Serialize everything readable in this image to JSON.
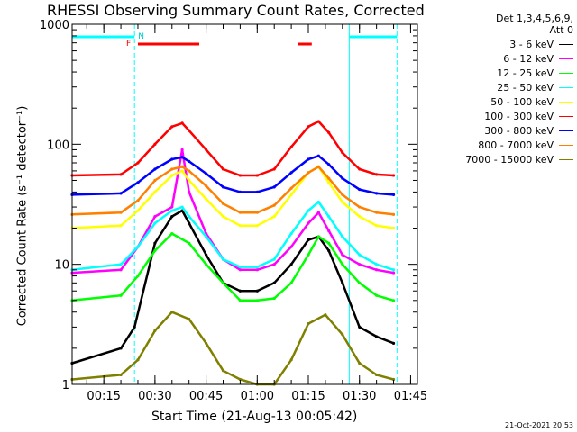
{
  "chart_data": {
    "type": "line",
    "title": "RHESSI Observing Summary Count Rates, Corrected",
    "xlabel": "Start Time (21-Aug-13 00:05:42)",
    "ylabel": "Corrected Count Rate (s⁻¹ detector⁻¹)",
    "y_scale": "log",
    "ylim": [
      1,
      1000
    ],
    "xlim": [
      "00:05:42",
      "01:47:00"
    ],
    "x_ticks": [
      "00:15",
      "00:30",
      "00:45",
      "01:00",
      "01:15",
      "01:30",
      "01:45"
    ],
    "y_ticks": [
      "1",
      "10",
      "100",
      "1000"
    ],
    "grid": false,
    "legend_placement": "right",
    "legend_header": [
      "Det 1,3,4,5,6,9,",
      "Att 0"
    ],
    "series": [
      {
        "name": "3 - 6 keV",
        "color": "#000000",
        "x": [
          "00:05:42",
          "00:20:00",
          "00:24:00",
          "00:30:00",
          "00:35:00",
          "00:38:00",
          "00:40:00",
          "00:45:00",
          "00:50:00",
          "00:55:00",
          "01:00:00",
          "01:05:00",
          "01:10:00",
          "01:15:00",
          "01:18:00",
          "01:21:00",
          "01:25:00",
          "01:30:00",
          "01:35:00",
          "01:40:00"
        ],
        "values": [
          1.5,
          2,
          3,
          15,
          25,
          28,
          22,
          12,
          7,
          6,
          6,
          7,
          10,
          16,
          17,
          13,
          7,
          3,
          2.5,
          2.2
        ]
      },
      {
        "name": "6 - 12 keV",
        "color": "#ff00ff",
        "x": [
          "00:05:42",
          "00:20:00",
          "00:25:00",
          "00:30:00",
          "00:35:00",
          "00:38:00",
          "00:40:00",
          "00:45:00",
          "00:50:00",
          "00:55:00",
          "01:00:00",
          "01:05:00",
          "01:10:00",
          "01:15:00",
          "01:18:00",
          "01:21:00",
          "01:25:00",
          "01:30:00",
          "01:35:00",
          "01:40:00"
        ],
        "values": [
          8.5,
          9,
          14,
          25,
          30,
          90,
          40,
          18,
          11,
          9,
          9,
          10,
          14,
          22,
          27,
          19,
          12,
          10,
          9,
          8.5
        ]
      },
      {
        "name": "12 - 25 keV",
        "color": "#00ff00",
        "x": [
          "00:05:42",
          "00:20:00",
          "00:25:00",
          "00:30:00",
          "00:35:00",
          "00:40:00",
          "00:45:00",
          "00:50:00",
          "00:55:00",
          "01:00:00",
          "01:05:00",
          "01:10:00",
          "01:15:00",
          "01:18:00",
          "01:21:00",
          "01:25:00",
          "01:30:00",
          "01:35:00",
          "01:40:00"
        ],
        "values": [
          5,
          5.5,
          8,
          13,
          18,
          15,
          10,
          7,
          5,
          5,
          5.2,
          7,
          12,
          17,
          15,
          10,
          7,
          5.5,
          5
        ]
      },
      {
        "name": "25 - 50 keV",
        "color": "#00ffff",
        "x": [
          "00:05:42",
          "00:20:00",
          "00:25:00",
          "00:30:00",
          "00:35:00",
          "00:38:00",
          "00:40:00",
          "00:45:00",
          "00:50:00",
          "00:55:00",
          "01:00:00",
          "01:05:00",
          "01:10:00",
          "01:15:00",
          "01:18:00",
          "01:21:00",
          "01:25:00",
          "01:30:00",
          "01:35:00",
          "01:40:00"
        ],
        "values": [
          9,
          10,
          14,
          22,
          28,
          30,
          25,
          17,
          11,
          9.5,
          9.5,
          11,
          18,
          28,
          33,
          25,
          17,
          12,
          10,
          9
        ]
      },
      {
        "name": "50 - 100 keV",
        "color": "#ffff00",
        "x": [
          "00:05:42",
          "00:20:00",
          "00:25:00",
          "00:30:00",
          "00:35:00",
          "00:38:00",
          "00:40:00",
          "00:45:00",
          "00:50:00",
          "00:55:00",
          "01:00:00",
          "01:05:00",
          "01:10:00",
          "01:15:00",
          "01:18:00",
          "01:21:00",
          "01:25:00",
          "01:30:00",
          "01:35:00",
          "01:40:00"
        ],
        "values": [
          20,
          21,
          28,
          40,
          55,
          60,
          50,
          35,
          25,
          21,
          21,
          25,
          38,
          58,
          65,
          48,
          33,
          25,
          21,
          20
        ]
      },
      {
        "name": "100 - 300 keV",
        "color": "#ff0000",
        "x": [
          "00:05:42",
          "00:20:00",
          "00:25:00",
          "00:30:00",
          "00:35:00",
          "00:38:00",
          "00:40:00",
          "00:45:00",
          "00:50:00",
          "00:55:00",
          "01:00:00",
          "01:05:00",
          "01:10:00",
          "01:15:00",
          "01:18:00",
          "01:21:00",
          "01:25:00",
          "01:30:00",
          "01:35:00",
          "01:40:00"
        ],
        "values": [
          55,
          56,
          70,
          100,
          140,
          150,
          130,
          90,
          62,
          55,
          55,
          62,
          95,
          140,
          155,
          125,
          85,
          62,
          56,
          55
        ]
      },
      {
        "name": "300 - 800 keV",
        "color": "#0000ff",
        "x": [
          "00:05:42",
          "00:20:00",
          "00:25:00",
          "00:30:00",
          "00:35:00",
          "00:38:00",
          "00:40:00",
          "00:45:00",
          "00:50:00",
          "00:55:00",
          "01:00:00",
          "01:05:00",
          "01:10:00",
          "01:15:00",
          "01:18:00",
          "01:21:00",
          "01:25:00",
          "01:30:00",
          "01:35:00",
          "01:40:00"
        ],
        "values": [
          38,
          39,
          48,
          62,
          75,
          78,
          72,
          57,
          44,
          40,
          40,
          44,
          58,
          75,
          80,
          68,
          52,
          42,
          39,
          38
        ]
      },
      {
        "name": "800 - 7000 keV",
        "color": "#ff8000",
        "x": [
          "00:05:42",
          "00:20:00",
          "00:25:00",
          "00:30:00",
          "00:35:00",
          "00:38:00",
          "00:40:00",
          "00:45:00",
          "00:50:00",
          "00:55:00",
          "01:00:00",
          "01:05:00",
          "01:10:00",
          "01:15:00",
          "01:18:00",
          "01:21:00",
          "01:25:00",
          "01:30:00",
          "01:35:00",
          "01:40:00"
        ],
        "values": [
          26,
          27,
          34,
          50,
          62,
          65,
          60,
          45,
          32,
          27,
          27,
          31,
          43,
          58,
          65,
          52,
          38,
          30,
          27,
          26
        ]
      },
      {
        "name": "7000 - 15000 keV",
        "color": "#808000",
        "x": [
          "00:05:42",
          "00:20:00",
          "00:25:00",
          "00:30:00",
          "00:35:00",
          "00:40:00",
          "00:45:00",
          "00:50:00",
          "00:55:00",
          "01:00:00",
          "01:05:00",
          "01:10:00",
          "01:15:00",
          "01:20:00",
          "01:25:00",
          "01:30:00",
          "01:35:00",
          "01:40:00"
        ],
        "values": [
          1.1,
          1.2,
          1.6,
          2.8,
          4,
          3.5,
          2.2,
          1.3,
          1.1,
          1,
          1,
          1.6,
          3.2,
          3.8,
          2.6,
          1.5,
          1.2,
          1.1
        ]
      }
    ],
    "markers": {
      "flag_labels": [
        "N",
        "F"
      ],
      "night_bars": [
        [
          "00:05:42",
          "00:24:00"
        ],
        [
          "01:27:00",
          "01:41:00"
        ]
      ],
      "flare_bars": [
        [
          "00:25:00",
          "00:43:00"
        ],
        [
          "01:12:00",
          "01:16:00"
        ]
      ],
      "boundary_lines_solid": [
        "00:05:42",
        "01:27:00"
      ],
      "boundary_lines_dashed": [
        "00:24:00",
        "01:41:00"
      ]
    }
  },
  "footer": {
    "timestamp": "21-Oct-2021 20:53"
  }
}
